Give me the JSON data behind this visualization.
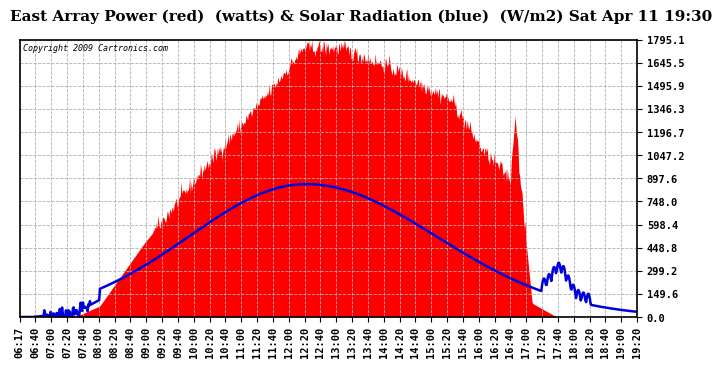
{
  "title": "East Array Power (red)  (watts) & Solar Radiation (blue)  (W/m2) Sat Apr 11 19:30",
  "copyright": "Copyright 2009 Cartronics.com",
  "background_color": "#ffffff",
  "plot_bg_color": "#ffffff",
  "yticks": [
    0.0,
    149.6,
    299.2,
    448.8,
    598.4,
    748.0,
    897.6,
    1047.2,
    1196.7,
    1346.3,
    1495.9,
    1645.5,
    1795.1
  ],
  "ymax": 1795.1,
  "ymin": 0.0,
  "red_color": "#ff0000",
  "blue_color": "#0000dd",
  "grid_color": "#b0b0b0",
  "border_color": "#000000",
  "title_fontsize": 11,
  "tick_fontsize": 7.5,
  "xtick_labels": [
    "06:17",
    "06:40",
    "07:00",
    "07:20",
    "07:40",
    "08:00",
    "08:20",
    "08:40",
    "09:00",
    "09:20",
    "09:40",
    "10:00",
    "10:20",
    "10:40",
    "11:00",
    "11:20",
    "11:40",
    "12:00",
    "12:20",
    "12:40",
    "13:00",
    "13:20",
    "13:40",
    "14:00",
    "14:20",
    "14:40",
    "15:00",
    "15:20",
    "15:40",
    "16:00",
    "16:20",
    "16:40",
    "17:00",
    "17:20",
    "17:40",
    "18:00",
    "18:20",
    "18:40",
    "19:00",
    "19:20"
  ],
  "n_points": 800,
  "power_peak": 1795.1,
  "solar_peak": 860.0
}
